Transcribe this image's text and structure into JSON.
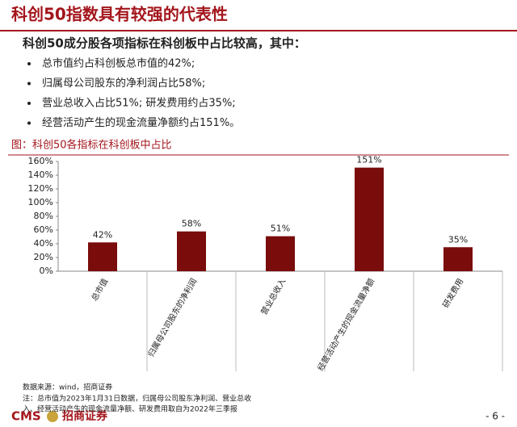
{
  "header": {
    "title": "科创50指数具有较强的代表性",
    "subtitle": "科创50成分股各项指标在科创板中占比较高，其中："
  },
  "bullets": [
    "总市值约占科创板总市值的42%;",
    "归属母公司股东的净利润占比58%;",
    "营业总收入占比51%;  研发费用约占35%;",
    "经营活动产生的现金流量净额约占151%。"
  ],
  "chart_data": {
    "type": "bar",
    "title": "图：科创50各指标在科创板中占比",
    "categories": [
      "总市值",
      "归属母公司股东的净利润",
      "营业总收入",
      "经营活动产生的现金流量净额",
      "研发费用"
    ],
    "values": [
      42,
      58,
      51,
      151,
      35
    ],
    "value_labels": [
      "42%",
      "58%",
      "51%",
      "151%",
      "35%"
    ],
    "color": "#7a0c0c",
    "ylim": [
      0,
      160
    ],
    "yticks": [
      {
        "value": 0,
        "label": "0%"
      },
      {
        "value": 20,
        "label": "20%"
      },
      {
        "value": 40,
        "label": "40%"
      },
      {
        "value": 60,
        "label": "60%"
      },
      {
        "value": 80,
        "label": "80%"
      },
      {
        "value": 100,
        "label": "100%"
      },
      {
        "value": 120,
        "label": "120%"
      },
      {
        "value": 140,
        "label": "140%"
      },
      {
        "value": 160,
        "label": "160%"
      }
    ],
    "grid": false
  },
  "footer": {
    "source": "数据来源：wind，招商证券",
    "notes": [
      "注：总市值为2023年1月31日数据，归属母公司股东净利润、营业总收",
      "入、经营活动产生的现金流量净额、研发费用取自为2022年三季报"
    ],
    "logo": "CMS",
    "logo_cn": "招商证券",
    "page": "- 6 -"
  }
}
